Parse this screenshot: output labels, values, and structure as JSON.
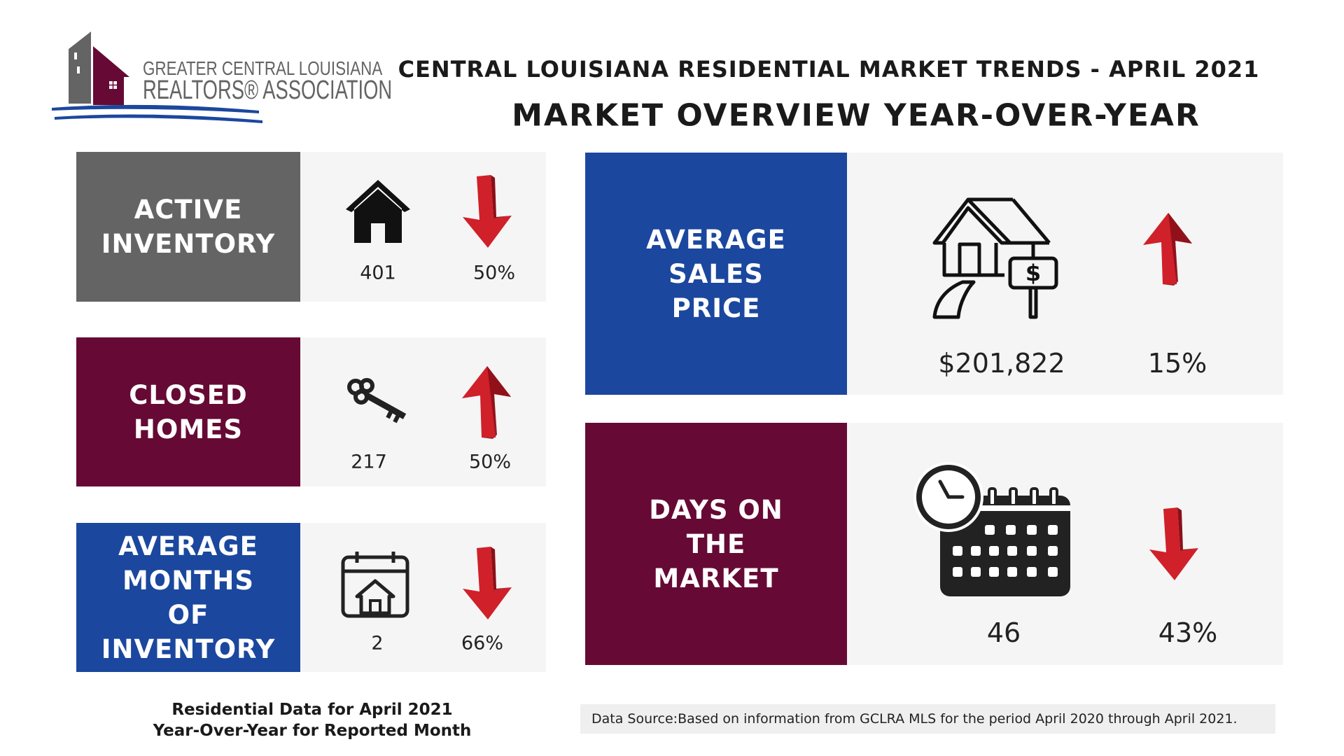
{
  "logo": {
    "line1": "GREATER CENTRAL LOUISIANA",
    "line2": "REALTORS® ASSOCIATION",
    "colors": {
      "gray": "#636463",
      "maroon": "#660a35",
      "blue": "#1b479e"
    }
  },
  "header": {
    "title": "CENTRAL LOUISIANA RESIDENTIAL MARKET TRENDS - APRIL 2021",
    "subtitle": "MARKET OVERVIEW YEAR-OVER-YEAR"
  },
  "cards": [
    {
      "label": "ACTIVE INVENTORY",
      "value": "401",
      "change": "50%",
      "direction": "down",
      "icon": "house-icon",
      "color": "#636463"
    },
    {
      "label": "CLOSED HOMES",
      "value": "217",
      "change": "50%",
      "direction": "up",
      "icon": "key-icon",
      "color": "#660a35"
    },
    {
      "label": "AVERAGE MONTHS OF INVENTORY",
      "value": "2",
      "change": "66%",
      "direction": "down",
      "icon": "calendar-house-icon",
      "color": "#1b479e"
    },
    {
      "label": "AVERAGE SALES PRICE",
      "value": "$201,822",
      "change": "15%",
      "direction": "up",
      "icon": "house-for-sale-icon",
      "color": "#1b479e"
    },
    {
      "label": "DAYS ON THE MARKET",
      "value": "46",
      "change": "43%",
      "direction": "down",
      "icon": "clock-calendar-icon",
      "color": "#660a35"
    }
  ],
  "footer": {
    "line1": "Residential Data for April 2021",
    "line2": "Year-Over-Year for Reported Month",
    "source": "Data Source:Based on information from GCLRA MLS for the period April 2020 through April 2021."
  },
  "arrow_color": "#d0202a"
}
